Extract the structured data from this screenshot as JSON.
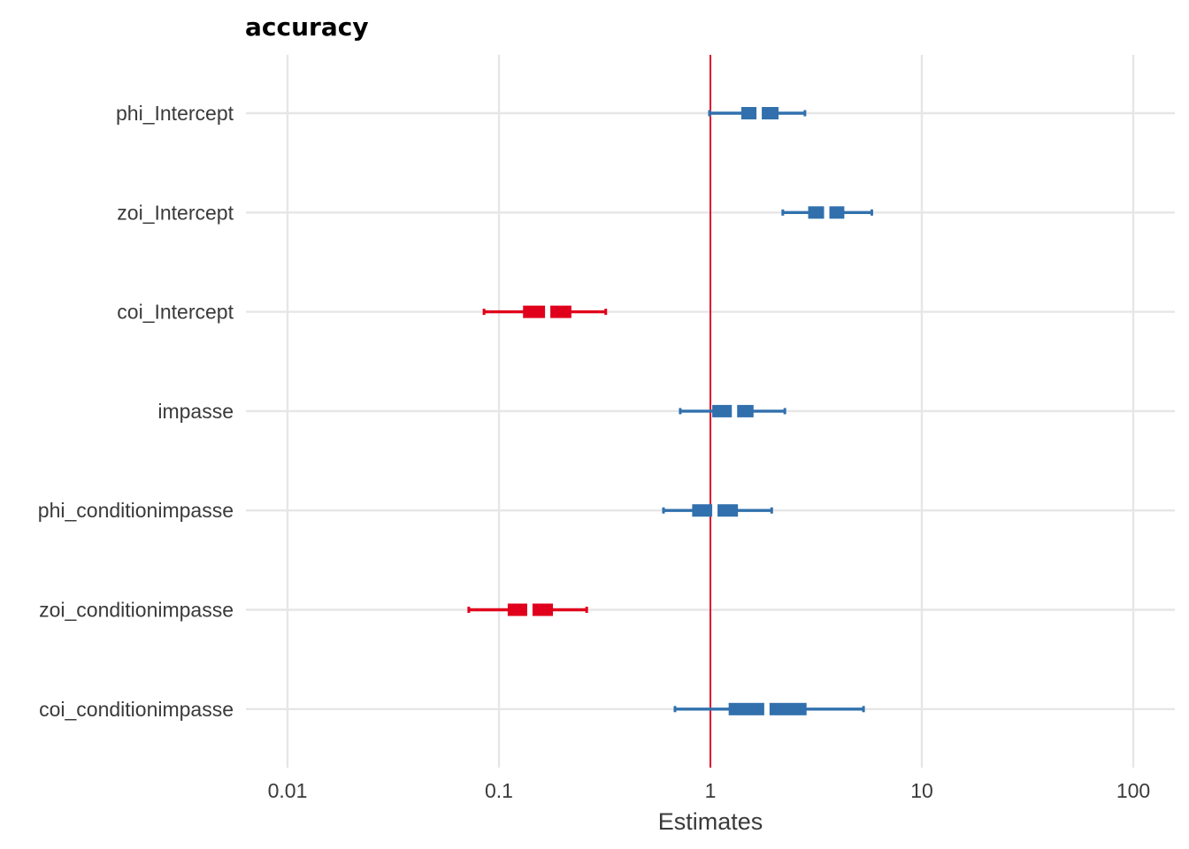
{
  "chart_data": {
    "type": "forest",
    "title": "accuracy",
    "xlabel": "Estimates",
    "ylabel": "",
    "x_scale": "log10",
    "xlim": [
      0.006,
      180
    ],
    "x_ticks": [
      0.01,
      0.1,
      1,
      10,
      100
    ],
    "x_tick_labels": [
      "0.01",
      "0.1",
      "1",
      "10",
      "100"
    ],
    "reference_line": 1,
    "grid": true,
    "legend": "none",
    "colors": {
      "positive": "#3170ad",
      "negative": "#e0001b",
      "reference": "#e0001b",
      "grid": "#e6e6e6"
    },
    "terms": [
      {
        "label": "phi_Intercept",
        "estimate": 1.7,
        "ci_inner": [
          1.4,
          2.1
        ],
        "ci_outer": [
          0.99,
          2.8
        ],
        "direction": "positive"
      },
      {
        "label": "zoi_Intercept",
        "estimate": 3.55,
        "ci_inner": [
          2.9,
          4.3
        ],
        "ci_outer": [
          2.2,
          5.8
        ],
        "direction": "positive"
      },
      {
        "label": "coi_Intercept",
        "estimate": 0.17,
        "ci_inner": [
          0.13,
          0.22
        ],
        "ci_outer": [
          0.085,
          0.32
        ],
        "direction": "negative"
      },
      {
        "label": "impasse",
        "estimate": 1.3,
        "ci_inner": [
          1.02,
          1.6
        ],
        "ci_outer": [
          0.72,
          2.25
        ],
        "direction": "positive"
      },
      {
        "label": "phi_conditionimpasse",
        "estimate": 1.05,
        "ci_inner": [
          0.82,
          1.35
        ],
        "ci_outer": [
          0.6,
          1.95
        ],
        "direction": "positive"
      },
      {
        "label": "zoi_conditionimpasse",
        "estimate": 0.14,
        "ci_inner": [
          0.11,
          0.18
        ],
        "ci_outer": [
          0.072,
          0.26
        ],
        "direction": "negative"
      },
      {
        "label": "coi_conditionimpasse",
        "estimate": 1.85,
        "ci_inner": [
          1.22,
          2.85
        ],
        "ci_outer": [
          0.68,
          5.3
        ],
        "direction": "positive"
      }
    ]
  }
}
